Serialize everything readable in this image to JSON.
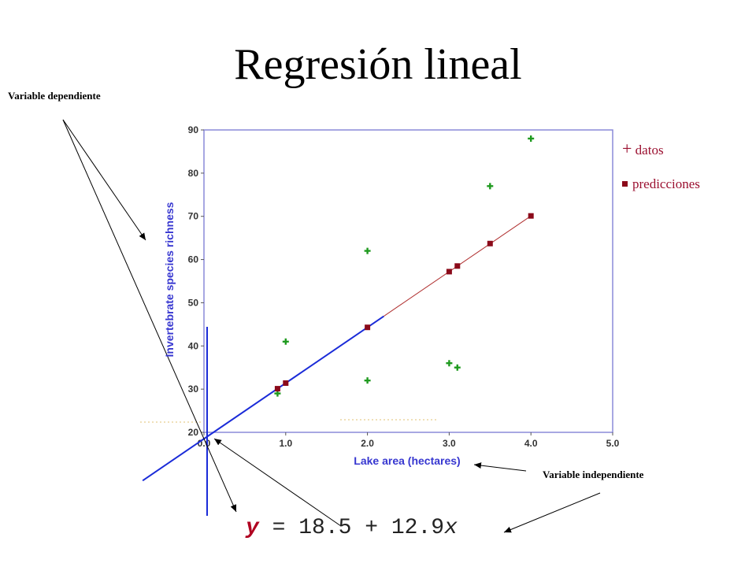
{
  "page": {
    "title": "Regresión lineal",
    "annotations": {
      "dependent": "Variable dependiente",
      "independent": "Variable independiente"
    },
    "legend": {
      "data_symbol": "+",
      "data_label": "datos",
      "pred_label": "predicciones"
    },
    "equation": {
      "y": "y",
      "rest": " = 18.5 + 12.9",
      "x": "x"
    }
  },
  "colors": {
    "axis_blue": "#3737d0",
    "data_green": "#1f9a1f",
    "pred_red": "#8b0a1a",
    "regression_blue": "#1a2bd8"
  },
  "chart_data": {
    "type": "scatter",
    "xlabel": "Lake area (hectares)",
    "ylabel": "Invertebrate species richness",
    "xlim": [
      0,
      5
    ],
    "ylim": [
      20,
      90
    ],
    "x_ticks": [
      "0.0",
      "1.0",
      "2.0",
      "3.0",
      "4.0",
      "5.0"
    ],
    "y_ticks": [
      "20",
      "30",
      "40",
      "50",
      "60",
      "70",
      "80",
      "90"
    ],
    "series": [
      {
        "name": "datos",
        "x": [
          0.9,
          1.0,
          2.0,
          2.0,
          3.0,
          3.1,
          3.5,
          4.0
        ],
        "y": [
          29,
          41,
          62,
          32,
          36,
          35,
          77,
          88
        ]
      },
      {
        "name": "predicciones",
        "x": [
          0.9,
          1.0,
          2.0,
          3.0,
          3.1,
          3.5,
          4.0
        ],
        "y": [
          30.1,
          31.4,
          44.3,
          57.2,
          58.5,
          63.7,
          70.1
        ]
      }
    ],
    "regression": {
      "intercept": 18.5,
      "slope": 12.9
    }
  }
}
